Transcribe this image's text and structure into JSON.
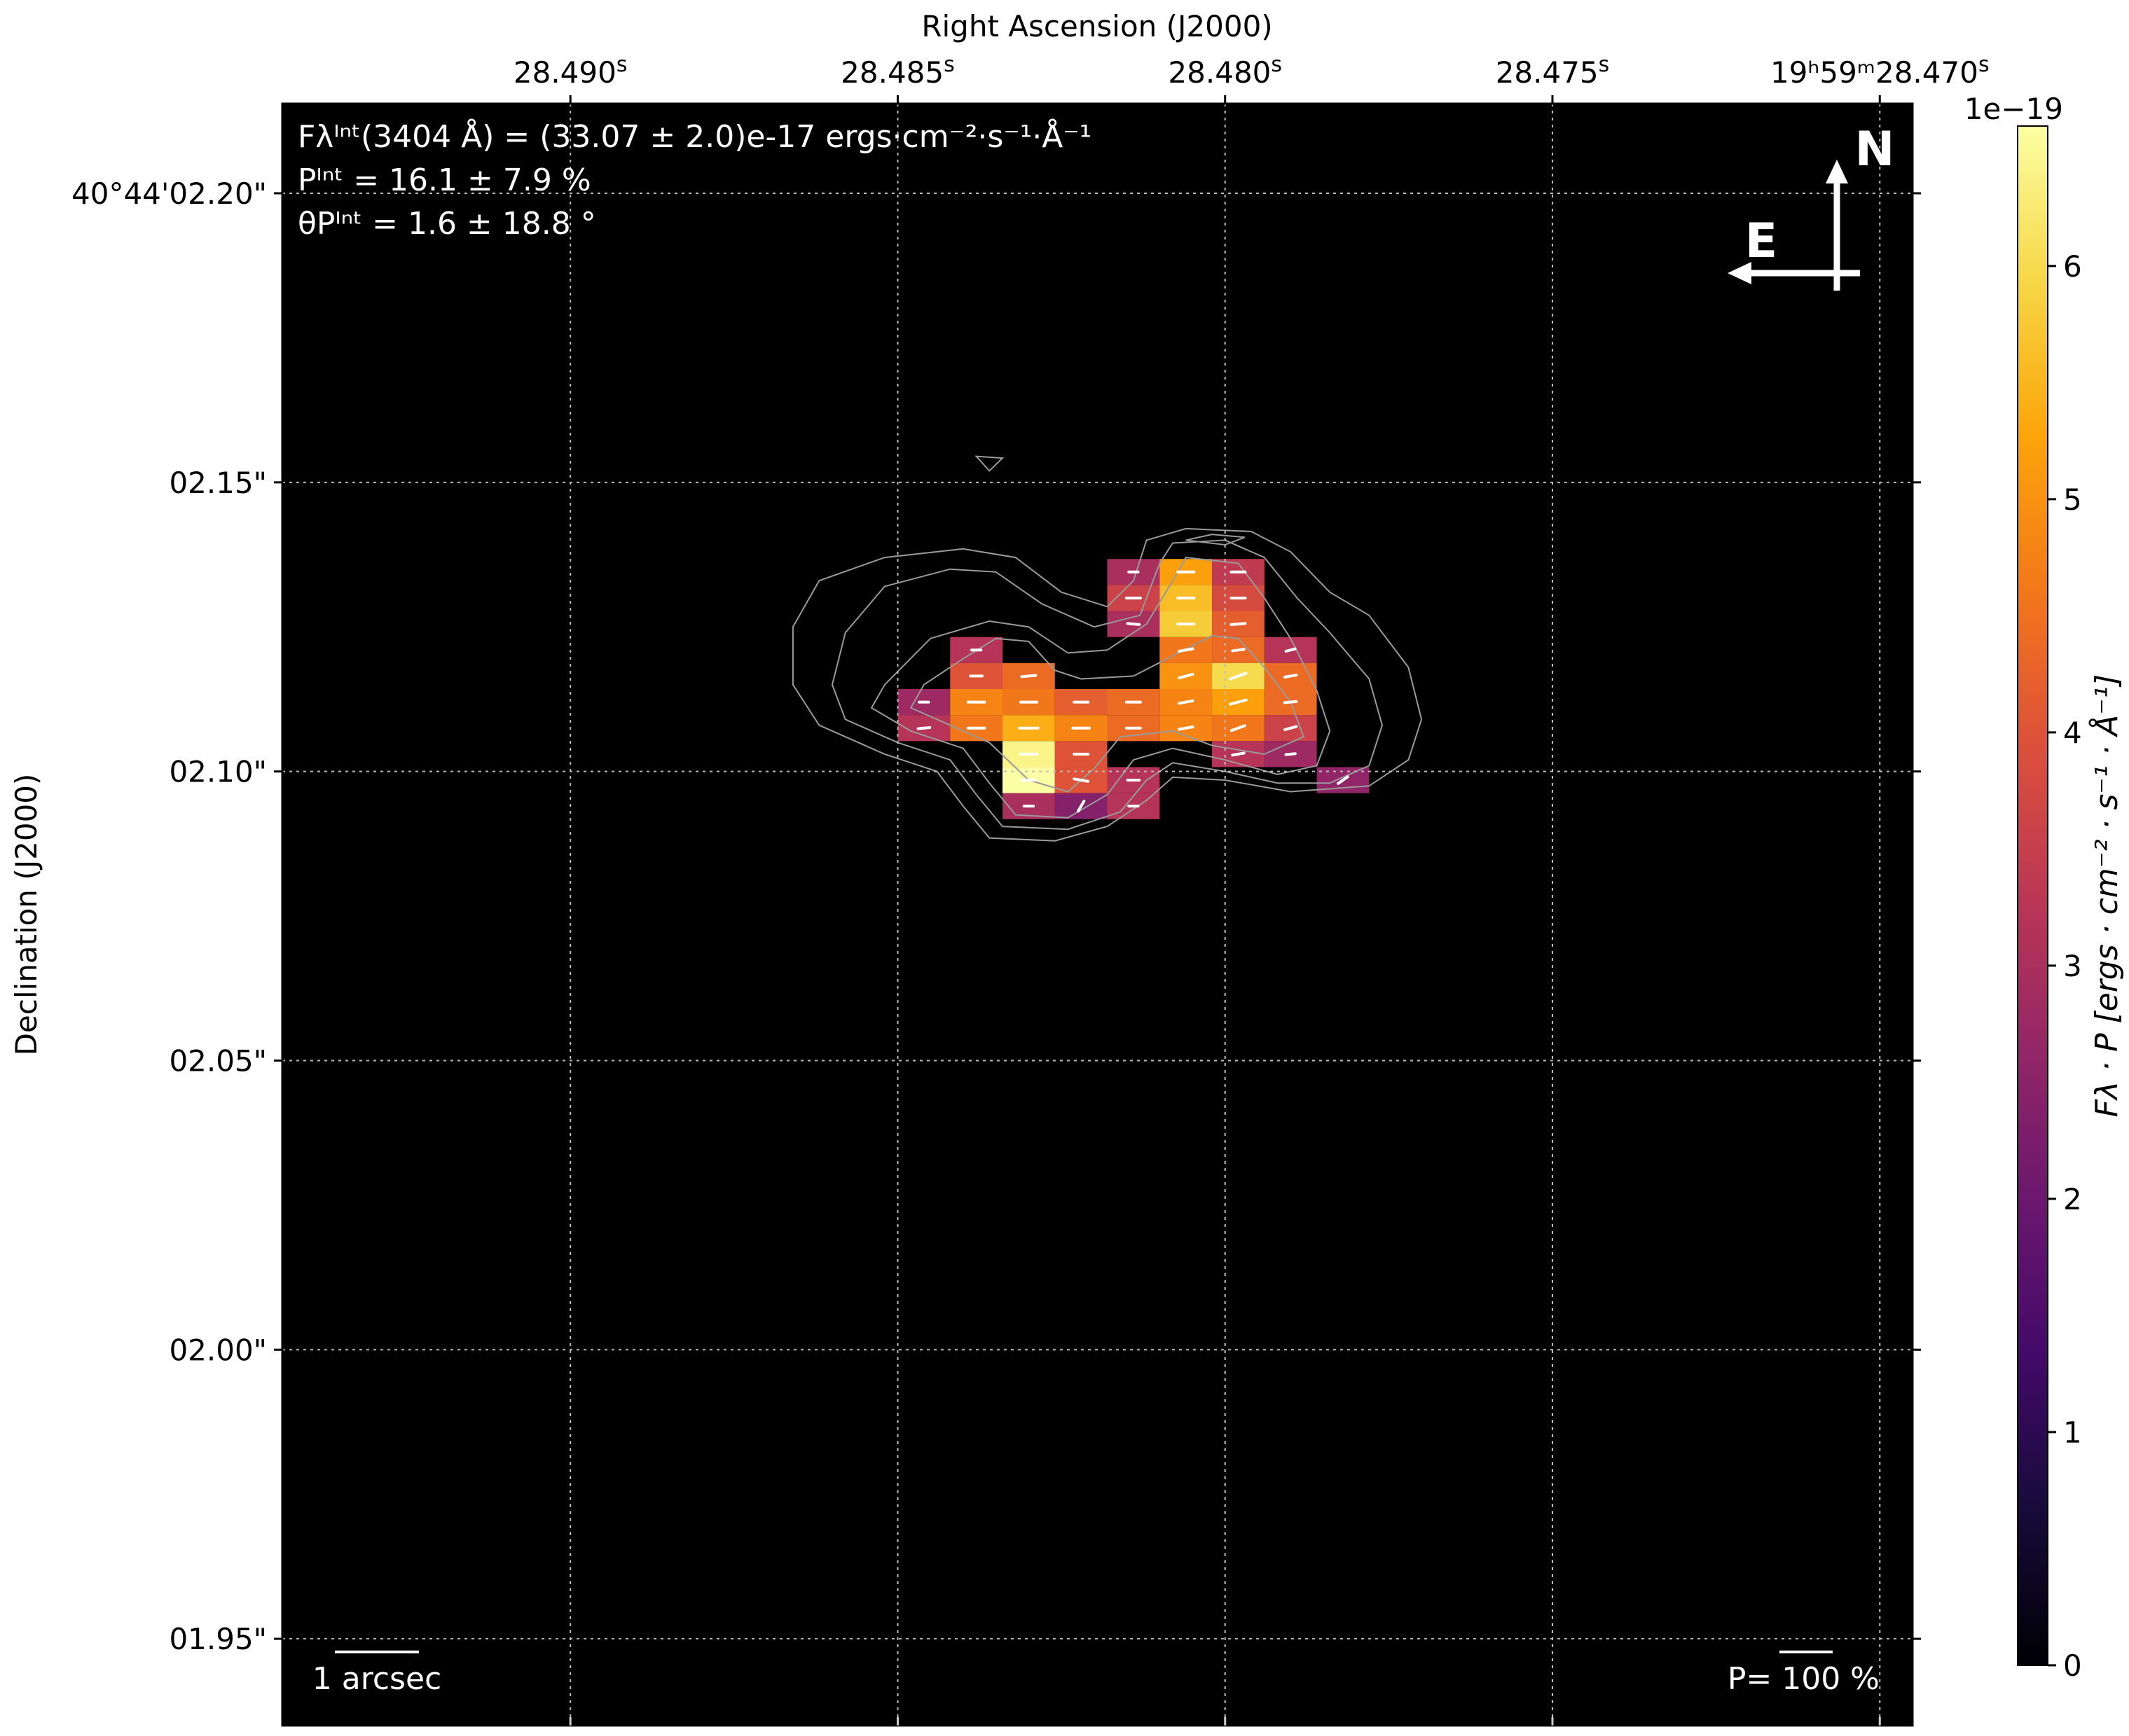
{
  "chart_data": {
    "type": "heatmap",
    "xlabel": "Right Ascension (J2000)",
    "ylabel": "Declination (J2000)",
    "x_ticks": [
      {
        "value": 28.49,
        "main": "28.490",
        "sup": "s"
      },
      {
        "value": 28.485,
        "main": "28.485",
        "sup": "s"
      },
      {
        "value": 28.48,
        "main": "28.480",
        "sup": "s"
      },
      {
        "value": 28.475,
        "main": "28.475",
        "sup": "s"
      },
      {
        "value": 28.47,
        "main": "19ʰ59ᵐ28.470",
        "sup": "s"
      }
    ],
    "xlim": [
      28.4944,
      28.4695
    ],
    "y_ticks": [
      {
        "value": 2.2,
        "label": "40°44'02.20\""
      },
      {
        "value": 2.15,
        "label": "02.15\""
      },
      {
        "value": 2.1,
        "label": "02.10\""
      },
      {
        "value": 2.05,
        "label": "02.05\""
      },
      {
        "value": 2.0,
        "label": "02.00\""
      },
      {
        "value": 1.95,
        "label": "01.95\""
      }
    ],
    "ylim": [
      1.935,
      2.2155
    ],
    "grid": true,
    "colormap": "inferno",
    "background": "#000000",
    "colorbar": {
      "label": "Fλ · P [ergs · cm⁻² · s⁻¹ · Å⁻¹]",
      "multiplier": "1e−19",
      "min": 0,
      "max": 6.6,
      "ticks": [
        0,
        1,
        2,
        3,
        4,
        5,
        6
      ]
    },
    "annotations": {
      "flux": "Fλᴵⁿᵗ(3404 Å) = (33.07 ± 2.0)e-17 ergs·cm⁻²·s⁻¹·Å⁻¹",
      "pol_degree": "Pᴵⁿᵗ = 16.1 ± 7.9 %",
      "pol_angle": "θPᴵⁿᵗ = 1.6 ± 18.8 °",
      "scale_bar": "1 arcsec",
      "pol_scale": "P= 100 %",
      "compass_north": "N",
      "compass_east": "E"
    },
    "cells": [
      {
        "ra": 28.4814,
        "dec": 2.1345,
        "value": 3.0
      },
      {
        "ra": 28.4806,
        "dec": 2.1345,
        "value": 5.2
      },
      {
        "ra": 28.4798,
        "dec": 2.1345,
        "value": 3.4
      },
      {
        "ra": 28.4814,
        "dec": 2.13,
        "value": 3.6
      },
      {
        "ra": 28.4806,
        "dec": 2.13,
        "value": 5.6
      },
      {
        "ra": 28.4798,
        "dec": 2.13,
        "value": 3.8
      },
      {
        "ra": 28.4814,
        "dec": 2.1255,
        "value": 3.0
      },
      {
        "ra": 28.4806,
        "dec": 2.1255,
        "value": 5.8
      },
      {
        "ra": 28.4798,
        "dec": 2.1255,
        "value": 4.2
      },
      {
        "ra": 28.4806,
        "dec": 2.121,
        "value": 4.6
      },
      {
        "ra": 28.4798,
        "dec": 2.121,
        "value": 4.4
      },
      {
        "ra": 28.479,
        "dec": 2.121,
        "value": 3.2
      },
      {
        "ra": 28.4806,
        "dec": 2.1165,
        "value": 5.0
      },
      {
        "ra": 28.4798,
        "dec": 2.1165,
        "value": 6.0
      },
      {
        "ra": 28.479,
        "dec": 2.1165,
        "value": 4.4
      },
      {
        "ra": 28.4838,
        "dec": 2.121,
        "value": 3.2
      },
      {
        "ra": 28.4838,
        "dec": 2.1165,
        "value": 4.0
      },
      {
        "ra": 28.483,
        "dec": 2.1165,
        "value": 4.4
      },
      {
        "ra": 28.4846,
        "dec": 2.112,
        "value": 2.8
      },
      {
        "ra": 28.4838,
        "dec": 2.112,
        "value": 4.8
      },
      {
        "ra": 28.483,
        "dec": 2.112,
        "value": 4.6
      },
      {
        "ra": 28.4822,
        "dec": 2.112,
        "value": 4.2
      },
      {
        "ra": 28.4814,
        "dec": 2.112,
        "value": 4.4
      },
      {
        "ra": 28.4806,
        "dec": 2.112,
        "value": 4.8
      },
      {
        "ra": 28.4798,
        "dec": 2.112,
        "value": 5.2
      },
      {
        "ra": 28.479,
        "dec": 2.112,
        "value": 4.4
      },
      {
        "ra": 28.4846,
        "dec": 2.1075,
        "value": 3.2
      },
      {
        "ra": 28.4838,
        "dec": 2.1075,
        "value": 4.6
      },
      {
        "ra": 28.483,
        "dec": 2.1075,
        "value": 5.4
      },
      {
        "ra": 28.4822,
        "dec": 2.1075,
        "value": 4.8
      },
      {
        "ra": 28.4814,
        "dec": 2.1075,
        "value": 4.4
      },
      {
        "ra": 28.4806,
        "dec": 2.1075,
        "value": 4.8
      },
      {
        "ra": 28.4798,
        "dec": 2.1075,
        "value": 4.6
      },
      {
        "ra": 28.479,
        "dec": 2.1075,
        "value": 3.6
      },
      {
        "ra": 28.483,
        "dec": 2.103,
        "value": 6.4
      },
      {
        "ra": 28.4822,
        "dec": 2.103,
        "value": 4.0
      },
      {
        "ra": 28.4798,
        "dec": 2.103,
        "value": 3.2
      },
      {
        "ra": 28.479,
        "dec": 2.103,
        "value": 2.8
      },
      {
        "ra": 28.483,
        "dec": 2.0985,
        "value": 6.6
      },
      {
        "ra": 28.4822,
        "dec": 2.0985,
        "value": 4.0
      },
      {
        "ra": 28.4814,
        "dec": 2.0985,
        "value": 3.2
      },
      {
        "ra": 28.4782,
        "dec": 2.0985,
        "value": 2.6
      },
      {
        "ra": 28.483,
        "dec": 2.094,
        "value": 3.0
      },
      {
        "ra": 28.4822,
        "dec": 2.094,
        "value": 2.4
      },
      {
        "ra": 28.4814,
        "dec": 2.094,
        "value": 3.2
      }
    ],
    "vectors": [
      {
        "ra": 28.4814,
        "dec": 2.1345,
        "p": 8,
        "angle": 0
      },
      {
        "ra": 28.4806,
        "dec": 2.1345,
        "p": 14,
        "angle": 0
      },
      {
        "ra": 28.4798,
        "dec": 2.1345,
        "p": 12,
        "angle": 0
      },
      {
        "ra": 28.4814,
        "dec": 2.13,
        "p": 12,
        "angle": 0
      },
      {
        "ra": 28.4806,
        "dec": 2.13,
        "p": 14,
        "angle": 0
      },
      {
        "ra": 28.4798,
        "dec": 2.13,
        "p": 12,
        "angle": 0
      },
      {
        "ra": 28.4814,
        "dec": 2.1255,
        "p": 10,
        "angle": -5
      },
      {
        "ra": 28.4806,
        "dec": 2.1255,
        "p": 14,
        "angle": 0
      },
      {
        "ra": 28.4798,
        "dec": 2.1255,
        "p": 12,
        "angle": 5
      },
      {
        "ra": 28.4806,
        "dec": 2.121,
        "p": 12,
        "angle": 10
      },
      {
        "ra": 28.4798,
        "dec": 2.121,
        "p": 10,
        "angle": 8
      },
      {
        "ra": 28.479,
        "dec": 2.121,
        "p": 8,
        "angle": 15
      },
      {
        "ra": 28.4806,
        "dec": 2.1165,
        "p": 12,
        "angle": 15
      },
      {
        "ra": 28.4798,
        "dec": 2.1165,
        "p": 14,
        "angle": 20
      },
      {
        "ra": 28.479,
        "dec": 2.1165,
        "p": 10,
        "angle": 10
      },
      {
        "ra": 28.4838,
        "dec": 2.121,
        "p": 8,
        "angle": 0
      },
      {
        "ra": 28.4838,
        "dec": 2.1165,
        "p": 10,
        "angle": 0
      },
      {
        "ra": 28.483,
        "dec": 2.1165,
        "p": 12,
        "angle": 5
      },
      {
        "ra": 28.4846,
        "dec": 2.112,
        "p": 8,
        "angle": 0
      },
      {
        "ra": 28.4838,
        "dec": 2.112,
        "p": 14,
        "angle": 0
      },
      {
        "ra": 28.483,
        "dec": 2.112,
        "p": 14,
        "angle": 0
      },
      {
        "ra": 28.4822,
        "dec": 2.112,
        "p": 12,
        "angle": 0
      },
      {
        "ra": 28.4814,
        "dec": 2.112,
        "p": 12,
        "angle": 0
      },
      {
        "ra": 28.4806,
        "dec": 2.112,
        "p": 12,
        "angle": 10
      },
      {
        "ra": 28.4798,
        "dec": 2.112,
        "p": 14,
        "angle": 15
      },
      {
        "ra": 28.479,
        "dec": 2.112,
        "p": 10,
        "angle": 5
      },
      {
        "ra": 28.4846,
        "dec": 2.1075,
        "p": 10,
        "angle": 5
      },
      {
        "ra": 28.4838,
        "dec": 2.1075,
        "p": 14,
        "angle": 0
      },
      {
        "ra": 28.483,
        "dec": 2.1075,
        "p": 16,
        "angle": 0
      },
      {
        "ra": 28.4822,
        "dec": 2.1075,
        "p": 14,
        "angle": 0
      },
      {
        "ra": 28.4814,
        "dec": 2.1075,
        "p": 12,
        "angle": 0
      },
      {
        "ra": 28.4806,
        "dec": 2.1075,
        "p": 12,
        "angle": 10
      },
      {
        "ra": 28.4798,
        "dec": 2.1075,
        "p": 12,
        "angle": 20
      },
      {
        "ra": 28.479,
        "dec": 2.1075,
        "p": 10,
        "angle": 15
      },
      {
        "ra": 28.483,
        "dec": 2.103,
        "p": 14,
        "angle": 0
      },
      {
        "ra": 28.4822,
        "dec": 2.103,
        "p": 12,
        "angle": 0
      },
      {
        "ra": 28.4798,
        "dec": 2.103,
        "p": 10,
        "angle": 10
      },
      {
        "ra": 28.479,
        "dec": 2.103,
        "p": 8,
        "angle": 5
      },
      {
        "ra": 28.483,
        "dec": 2.0985,
        "p": 12,
        "angle": 0
      },
      {
        "ra": 28.4822,
        "dec": 2.0985,
        "p": 12,
        "angle": -10
      },
      {
        "ra": 28.4814,
        "dec": 2.0985,
        "p": 10,
        "angle": 0
      },
      {
        "ra": 28.4782,
        "dec": 2.0985,
        "p": 10,
        "angle": 35
      },
      {
        "ra": 28.483,
        "dec": 2.094,
        "p": 8,
        "angle": 0
      },
      {
        "ra": 28.4822,
        "dec": 2.094,
        "p": 10,
        "angle": 60
      },
      {
        "ra": 28.4814,
        "dec": 2.094,
        "p": 8,
        "angle": 0
      }
    ],
    "contours": [
      [
        [
          28.4846,
          2.115
        ],
        [
          28.484,
          2.1195
        ],
        [
          28.4835,
          2.123
        ],
        [
          28.483,
          2.1225
        ],
        [
          28.4826,
          2.1175
        ],
        [
          28.4822,
          2.116
        ],
        [
          28.4814,
          2.1165
        ],
        [
          28.4808,
          2.12
        ],
        [
          28.4802,
          2.1235
        ],
        [
          28.4798,
          2.123
        ],
        [
          28.4794,
          2.118
        ],
        [
          28.479,
          2.112
        ],
        [
          28.4788,
          2.106
        ],
        [
          28.4794,
          2.103
        ],
        [
          28.4802,
          2.1045
        ],
        [
          28.4808,
          2.107
        ],
        [
          28.4816,
          2.106
        ],
        [
          28.482,
          2.1005
        ],
        [
          28.4824,
          2.0965
        ],
        [
          28.483,
          2.0985
        ],
        [
          28.4836,
          2.105
        ],
        [
          28.4842,
          2.108
        ],
        [
          28.4848,
          2.111
        ]
      ],
      [
        [
          28.4852,
          2.115
        ],
        [
          28.4845,
          2.123
        ],
        [
          28.4836,
          2.126
        ],
        [
          28.483,
          2.125
        ],
        [
          28.4824,
          2.1205
        ],
        [
          28.4818,
          2.121
        ],
        [
          28.4812,
          2.1255
        ],
        [
          28.4808,
          2.133
        ],
        [
          28.4806,
          2.137
        ],
        [
          28.4798,
          2.136
        ],
        [
          28.4794,
          2.13
        ],
        [
          28.479,
          2.123
        ],
        [
          28.4786,
          2.114
        ],
        [
          28.4784,
          2.107
        ],
        [
          28.4786,
          2.101
        ],
        [
          28.4792,
          2.0995
        ],
        [
          28.48,
          2.102
        ],
        [
          28.4808,
          2.104
        ],
        [
          28.4814,
          2.102
        ],
        [
          28.4818,
          2.096
        ],
        [
          28.4824,
          2.092
        ],
        [
          28.4832,
          2.0925
        ],
        [
          28.4836,
          2.098
        ],
        [
          28.484,
          2.104
        ],
        [
          28.4848,
          2.107
        ],
        [
          28.4854,
          2.111
        ]
      ],
      [
        [
          28.486,
          2.115
        ],
        [
          28.4858,
          2.124
        ],
        [
          28.4852,
          2.132
        ],
        [
          28.4842,
          2.135
        ],
        [
          28.4835,
          2.1345
        ],
        [
          28.4828,
          2.129
        ],
        [
          28.482,
          2.125
        ],
        [
          28.4813,
          2.127
        ],
        [
          28.481,
          2.136
        ],
        [
          28.4808,
          2.1395
        ],
        [
          28.48,
          2.14
        ],
        [
          28.4794,
          2.137
        ],
        [
          28.4789,
          2.13
        ],
        [
          28.4784,
          2.124
        ],
        [
          28.4778,
          2.116
        ],
        [
          28.4776,
          2.108
        ],
        [
          28.4778,
          2.101
        ],
        [
          28.4784,
          2.098
        ],
        [
          28.4792,
          2.098
        ],
        [
          28.48,
          2.1
        ],
        [
          28.4808,
          2.1015
        ],
        [
          28.4812,
          2.0985
        ],
        [
          28.4816,
          2.093
        ],
        [
          28.4824,
          2.09
        ],
        [
          28.4834,
          2.0905
        ],
        [
          28.4838,
          2.096
        ],
        [
          28.4842,
          2.102
        ],
        [
          28.485,
          2.105
        ],
        [
          28.4858,
          2.109
        ]
      ],
      [
        [
          28.4866,
          2.115
        ],
        [
          28.4866,
          2.125
        ],
        [
          28.4862,
          2.133
        ],
        [
          28.4852,
          2.137
        ],
        [
          28.484,
          2.1385
        ],
        [
          28.4832,
          2.137
        ],
        [
          28.4825,
          2.131
        ],
        [
          28.4818,
          2.1285
        ],
        [
          28.4814,
          2.133
        ],
        [
          28.4812,
          2.14
        ],
        [
          28.4806,
          2.142
        ],
        [
          28.4796,
          2.1415
        ],
        [
          28.479,
          2.138
        ],
        [
          28.4784,
          2.131
        ],
        [
          28.4778,
          2.127
        ],
        [
          28.4772,
          2.118
        ],
        [
          28.477,
          2.109
        ],
        [
          28.4772,
          2.102
        ],
        [
          28.4778,
          2.0975
        ],
        [
          28.479,
          2.0965
        ],
        [
          28.48,
          2.0985
        ],
        [
          28.4808,
          2.099
        ],
        [
          28.4812,
          2.095
        ],
        [
          28.4818,
          2.0905
        ],
        [
          28.4826,
          2.088
        ],
        [
          28.4836,
          2.0885
        ],
        [
          28.484,
          2.094
        ],
        [
          28.4844,
          2.1
        ],
        [
          28.4852,
          2.103
        ],
        [
          28.4862,
          2.108
        ]
      ],
      [
        [
          28.4806,
          2.14
        ],
        [
          28.4802,
          2.141
        ],
        [
          28.4797,
          2.1405
        ],
        [
          28.48,
          2.1392
        ]
      ],
      [
        [
          28.4838,
          2.1545
        ],
        [
          28.4836,
          2.152
        ],
        [
          28.4834,
          2.1542
        ]
      ]
    ]
  }
}
